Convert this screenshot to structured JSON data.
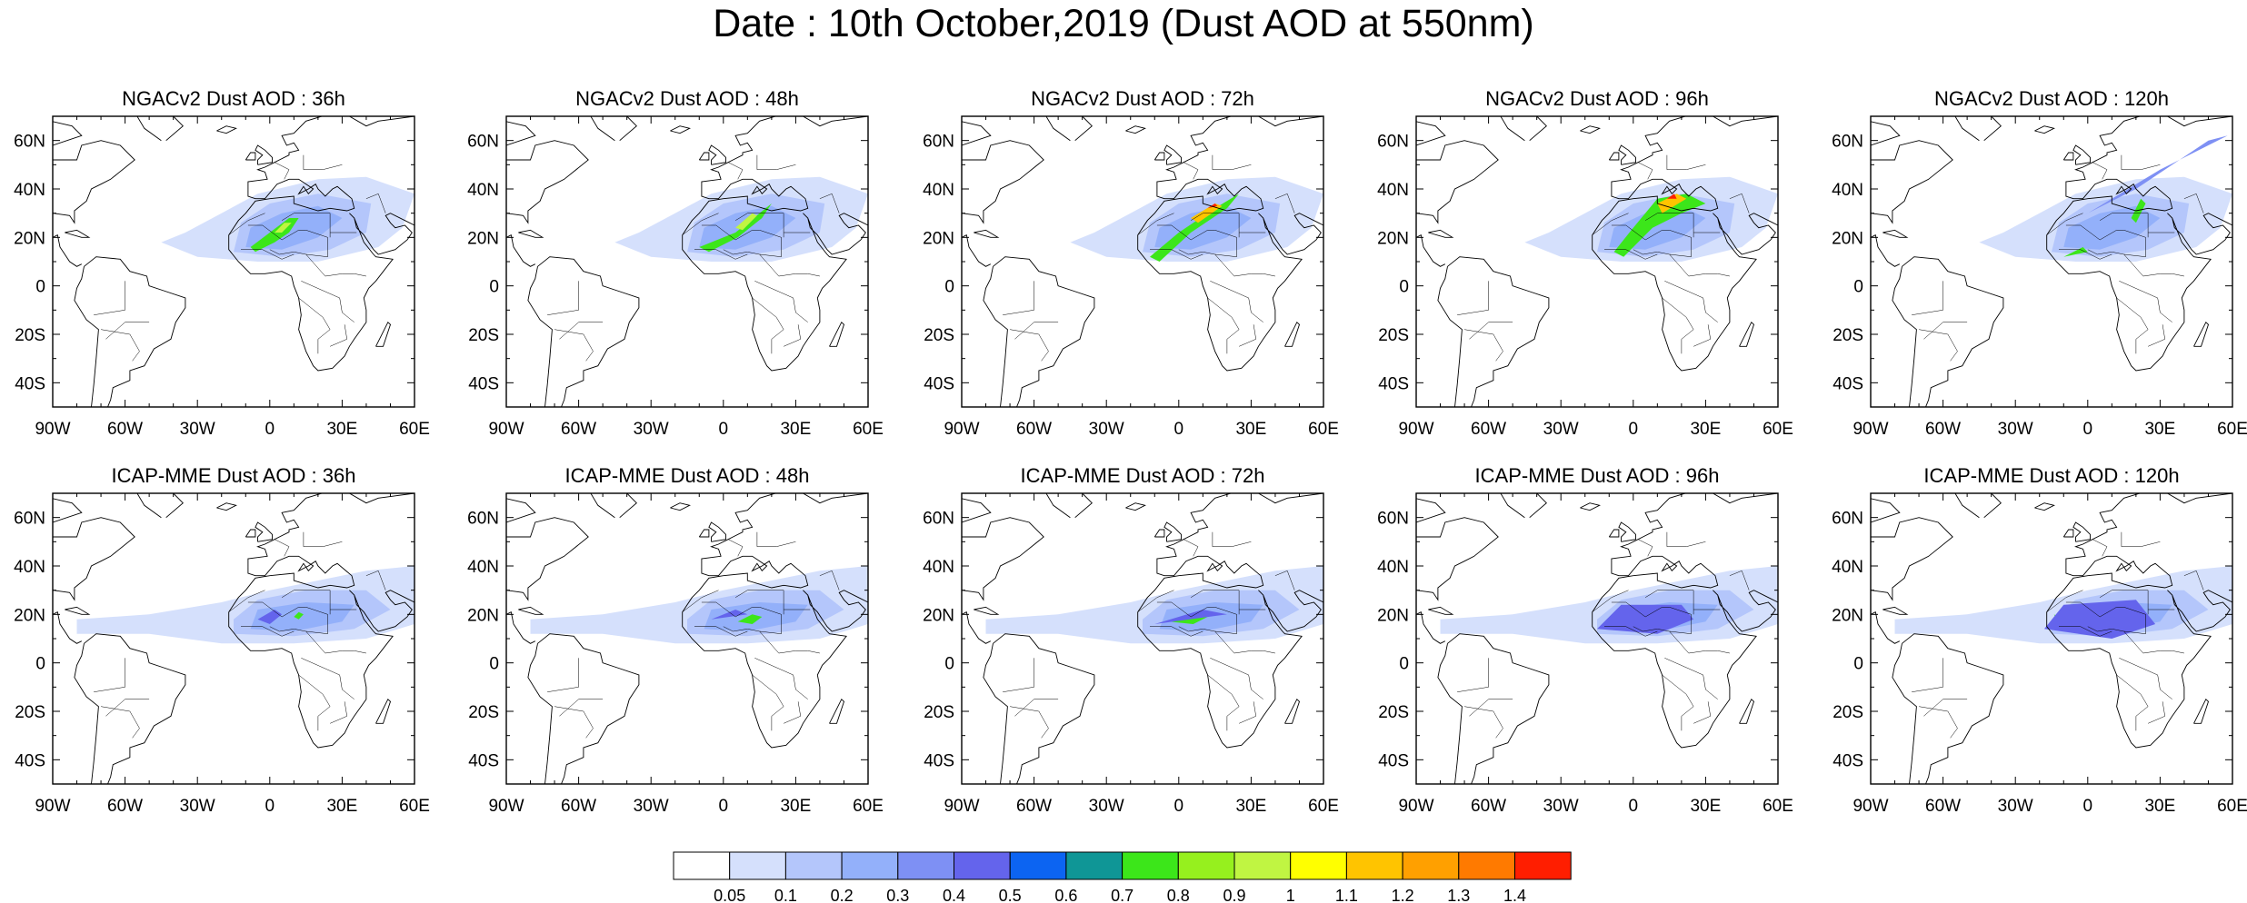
{
  "title": "Date : 10th October,2019 (Dust AOD at 550nm)",
  "panels": [
    {
      "title": "NGACv2 Dust AOD : 36h",
      "model": "NGACv2",
      "lead": "36h"
    },
    {
      "title": "NGACv2 Dust AOD : 48h",
      "model": "NGACv2",
      "lead": "48h"
    },
    {
      "title": "NGACv2 Dust AOD : 72h",
      "model": "NGACv2",
      "lead": "72h"
    },
    {
      "title": "NGACv2 Dust AOD : 96h",
      "model": "NGACv2",
      "lead": "96h"
    },
    {
      "title": "NGACv2 Dust AOD : 120h",
      "model": "NGACv2",
      "lead": "120h"
    },
    {
      "title": "ICAP-MME Dust AOD : 36h",
      "model": "ICAP-MME",
      "lead": "36h"
    },
    {
      "title": "ICAP-MME Dust AOD : 48h",
      "model": "ICAP-MME",
      "lead": "48h"
    },
    {
      "title": "ICAP-MME Dust AOD : 72h",
      "model": "ICAP-MME",
      "lead": "72h"
    },
    {
      "title": "ICAP-MME Dust AOD : 96h",
      "model": "ICAP-MME",
      "lead": "96h"
    },
    {
      "title": "ICAP-MME Dust AOD : 120h",
      "model": "ICAP-MME",
      "lead": "120h"
    }
  ],
  "lon_ticks": [
    "90W",
    "60W",
    "30W",
    "0",
    "30E",
    "60E"
  ],
  "lat_ticks": [
    "60N",
    "40N",
    "20N",
    "0",
    "20S",
    "40S"
  ],
  "lon_range": [
    -90,
    60
  ],
  "lat_range": [
    -50,
    70
  ],
  "colorbar": {
    "levels": [
      "0.05",
      "0.1",
      "0.2",
      "0.3",
      "0.4",
      "0.5",
      "0.6",
      "0.7",
      "0.8",
      "0.9",
      "1",
      "1.1",
      "1.2",
      "1.3",
      "1.4"
    ],
    "colors": [
      "#ffffff",
      "#d5e0fc",
      "#b4c6fb",
      "#93b0fa",
      "#7e90f4",
      "#6464ec",
      "#0c64f2",
      "#0f9696",
      "#3ce61a",
      "#96f01e",
      "#c0f542",
      "#ffff00",
      "#ffc400",
      "#ffa000",
      "#ff7a00",
      "#ff1e00"
    ]
  }
}
